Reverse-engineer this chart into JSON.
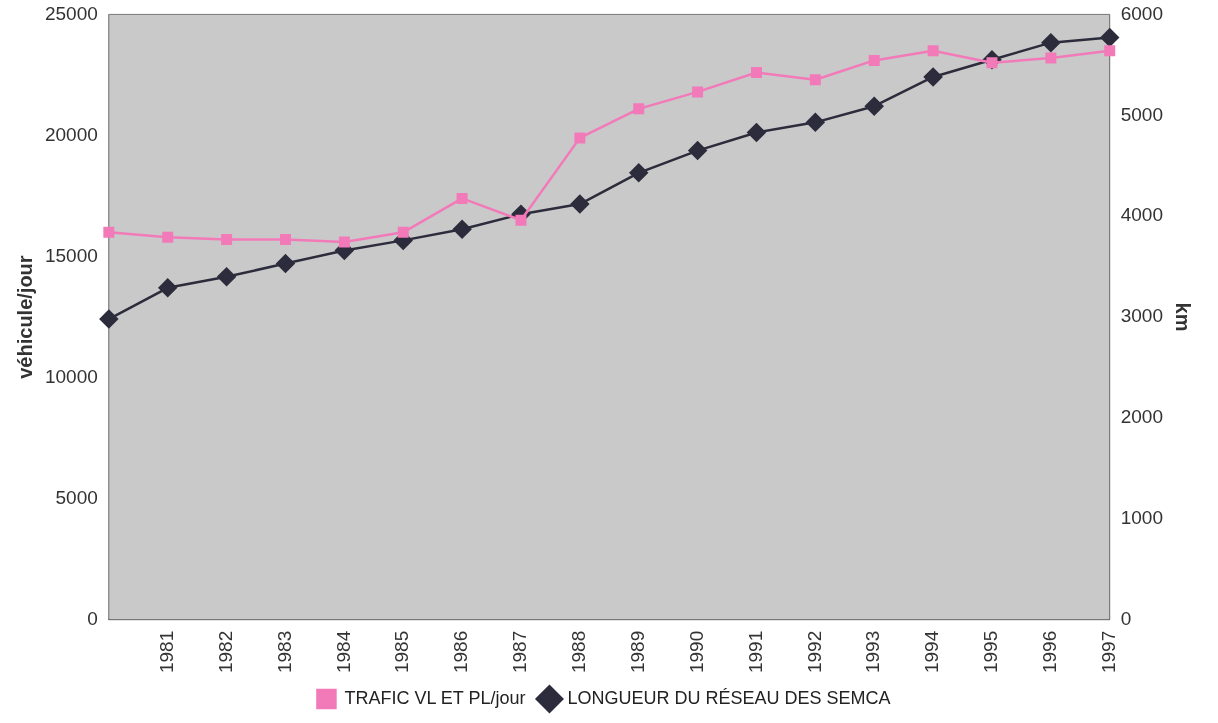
{
  "chart_data": {
    "type": "line",
    "categories": [
      null,
      "1981",
      "1982",
      "1983",
      "1984",
      "1985",
      "1986",
      "1987",
      "1988",
      "1989",
      "1990",
      "1991",
      "1992",
      "1993",
      "1994",
      "1995",
      "1996",
      "1997"
    ],
    "ylabel": "véhicule/jour",
    "y2label": "km",
    "ylim": [
      0,
      25000
    ],
    "yticks": [
      0,
      5000,
      10000,
      15000,
      20000,
      25000
    ],
    "y2lim": [
      0,
      6000
    ],
    "y2ticks": [
      0,
      1000,
      2000,
      3000,
      4000,
      5000,
      6000
    ],
    "legend": "bottom",
    "grid": false,
    "series": [
      {
        "name": "TRAFIC VL ET PL/jour",
        "color": "#f27ab9",
        "marker": "square",
        "values": [
          16000,
          15800,
          15700,
          15700,
          15600,
          16000,
          17400,
          16500,
          19900,
          21100,
          21800,
          22600,
          22300,
          23100,
          23500,
          23000,
          23200,
          23500
        ]
      },
      {
        "name": "LONGUEUR DU RÉSEAU DES SEMCA",
        "color": "#2c2c3c",
        "marker": "diamond",
        "axis": "y2",
        "values": [
          2980,
          3290,
          3400,
          3530,
          3660,
          3760,
          3870,
          4020,
          4120,
          4430,
          4650,
          4830,
          4930,
          5090,
          5380,
          5550,
          5720,
          5770
        ]
      }
    ]
  }
}
